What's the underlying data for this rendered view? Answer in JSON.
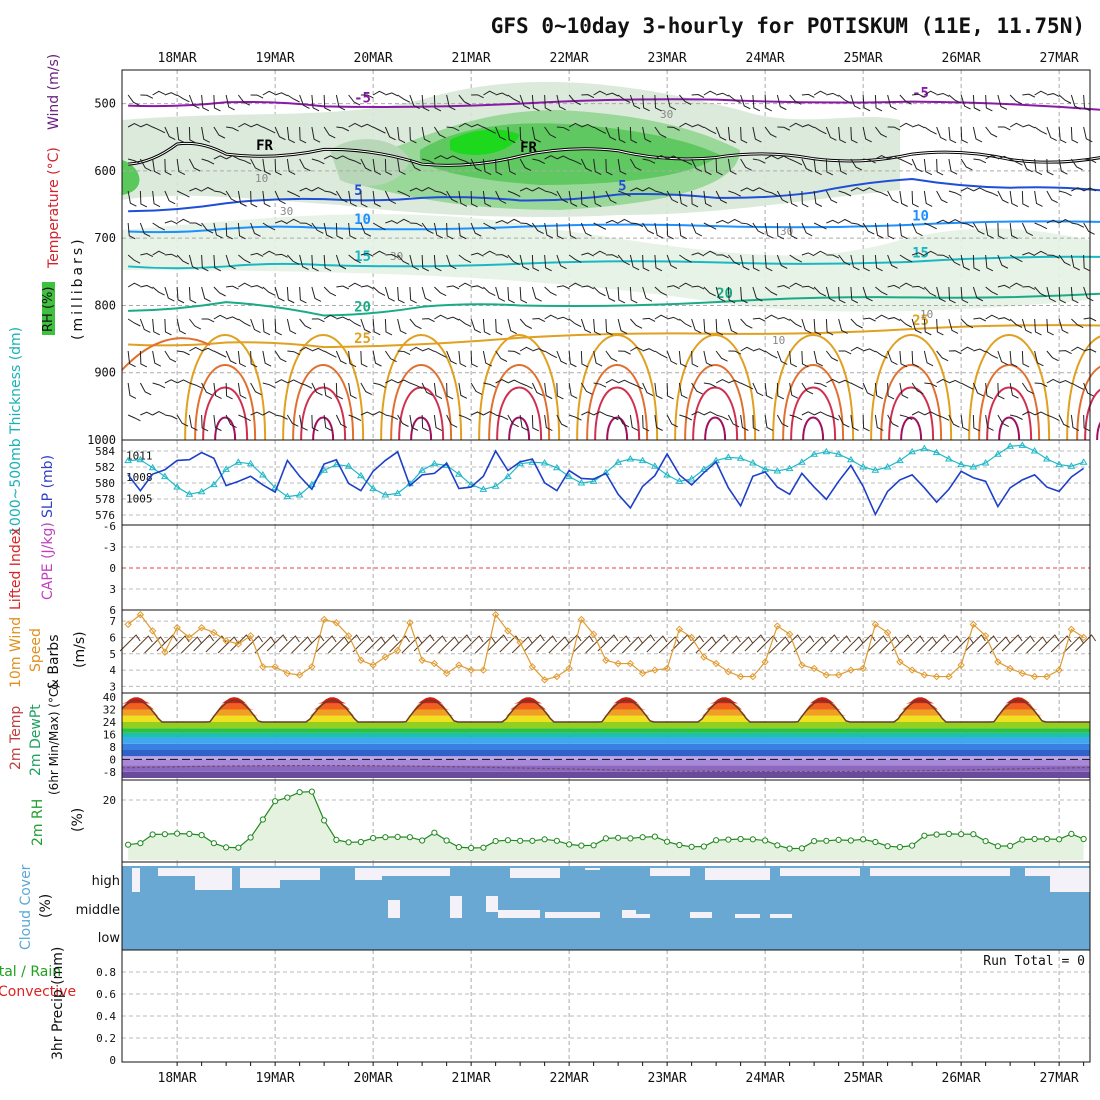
{
  "chart_data": {
    "type": "meteogram",
    "title": "GFS 0~10day 3-hourly for POTISKUM (11E, 11.75N)",
    "dates": [
      "18MAR",
      "19MAR",
      "20MAR",
      "21MAR",
      "22MAR",
      "23MAR",
      "24MAR",
      "25MAR",
      "26MAR",
      "27MAR"
    ],
    "panels": {
      "upper_air": {
        "ylabels": [
          "Wind (m/s)",
          "Temperature (°C)",
          "RH (%)",
          "(millibars)"
        ],
        "yticks": [
          500,
          600,
          700,
          800,
          900,
          1000
        ],
        "ylim": [
          1000,
          450
        ],
        "isotherms": [
          {
            "label": "-5",
            "color": "#8a19a8",
            "p": [
              [
                0,
                503
              ],
              [
                24,
                498
              ],
              [
                48,
                504
              ],
              [
                96,
                500
              ],
              [
                144,
                494
              ],
              [
                192,
                497
              ],
              [
                240,
                510
              ],
              [
                264,
                512
              ]
            ]
          },
          {
            "label": "FR",
            "color": "#000000",
            "p": [
              [
                0,
                590
              ],
              [
                12,
                560
              ],
              [
                24,
                575
              ],
              [
                48,
                568
              ],
              [
                72,
                590
              ],
              [
                96,
                578
              ],
              [
                120,
                570
              ],
              [
                144,
                580
              ],
              [
                168,
                582
              ],
              [
                192,
                575
              ],
              [
                216,
                583
              ],
              [
                240,
                578
              ],
              [
                264,
                582
              ]
            ]
          },
          {
            "label": "5",
            "color": "#1f4ed8",
            "p": [
              [
                0,
                660
              ],
              [
                24,
                648
              ],
              [
                48,
                642
              ],
              [
                72,
                640
              ],
              [
                96,
                644
              ],
              [
                120,
                635
              ],
              [
                144,
                640
              ],
              [
                168,
                632
              ],
              [
                192,
                612
              ],
              [
                216,
                625
              ],
              [
                240,
                630
              ],
              [
                264,
                645
              ]
            ]
          },
          {
            "label": "10",
            "color": "#1e90ff",
            "p": [
              [
                0,
                690
              ],
              [
                24,
                686
              ],
              [
                48,
                685
              ],
              [
                96,
                683
              ],
              [
                144,
                682
              ],
              [
                192,
                680
              ],
              [
                240,
                676
              ],
              [
                264,
                672
              ]
            ]
          },
          {
            "label": "15",
            "color": "#17b8c4",
            "p": [
              [
                0,
                742
              ],
              [
                24,
                742
              ],
              [
                48,
                740
              ],
              [
                96,
                738
              ],
              [
                144,
                736
              ],
              [
                192,
                735
              ],
              [
                240,
                728
              ],
              [
                264,
                724
              ]
            ]
          },
          {
            "label": "20",
            "color": "#1aab86",
            "p": [
              [
                0,
                808
              ],
              [
                24,
                795
              ],
              [
                48,
                815
              ],
              [
                72,
                802
              ],
              [
                96,
                800
              ],
              [
                144,
                795
              ],
              [
                192,
                788
              ],
              [
                240,
                782
              ],
              [
                264,
                785
              ]
            ]
          },
          {
            "label": "25",
            "color": "#e0a020",
            "p": [
              [
                0,
                858
              ],
              [
                24,
                855
              ],
              [
                48,
                862
              ],
              [
                96,
                848
              ],
              [
                144,
                842
              ],
              [
                192,
                835
              ],
              [
                240,
                830
              ],
              [
                264,
                818
              ]
            ]
          }
        ],
        "rh_labels": [
          "10",
          "30",
          "30",
          "30",
          "30",
          "10",
          "10"
        ]
      },
      "thickness_slp": {
        "ylabel_left": "1000~500mb Thickness (dm)",
        "ylabel_right": "SLP (mb)",
        "yticks_left": [
          576,
          578,
          580,
          582,
          584
        ],
        "yticks_right": [
          1005,
          1008,
          1011
        ],
        "thickness": [
          582.8,
          582.9,
          581.9,
          580.8,
          579.5,
          578.6,
          578.9,
          579.8,
          581.7,
          582.6,
          582.4,
          581.0,
          579.4,
          578.3,
          578.5,
          579.8,
          581.6,
          582.3,
          582.1,
          580.9,
          579.3,
          578.5,
          578.7,
          579.9,
          581.6,
          582.4,
          582.2,
          581.1,
          579.8,
          579.2,
          579.6,
          580.8,
          582.4,
          582.6,
          582.5,
          581.9,
          580.8,
          580.0,
          580.2,
          581.3,
          582.6,
          583.0,
          582.8,
          582.1,
          581.0,
          580.2,
          580.5,
          581.7,
          582.8,
          583.2,
          583.1,
          582.5,
          581.7,
          581.5,
          581.8,
          582.6,
          583.6,
          583.9,
          583.6,
          582.9,
          582.0,
          581.6,
          582.0,
          582.8,
          583.9,
          584.3,
          583.8,
          583.0,
          582.3,
          582.0,
          582.5,
          583.6,
          584.6,
          584.7,
          584.0,
          583.0,
          582.3,
          582.1,
          582.6,
          583.6,
          584.4,
          584.6,
          584.0,
          583.2,
          582.5,
          582.2,
          582.6,
          583.4,
          584.2,
          585.0,
          585.0,
          584.6,
          584.1,
          583.5,
          582.8
        ],
        "slp": [
          1008.3,
          1006.1,
          1008.4,
          1009.0,
          1010.3,
          1010.4,
          1011.4,
          1010.6,
          1006.8,
          1007.4,
          1008.1,
          1006.9,
          1005.9,
          1010.3,
          1008.1,
          1006.3,
          1009.8,
          1010.4,
          1007.1,
          1006.1,
          1008.8,
          1010.3,
          1011.5,
          1006.8,
          1008.3,
          1008.5,
          1009.9,
          1006.4,
          1006.6,
          1008.1,
          1011.6,
          1008.9,
          1010.1,
          1010.5,
          1007.2,
          1006.1,
          1008.9,
          1007.8,
          1007.7,
          1008.5,
          1005.6,
          1003.7,
          1006.7,
          1008.2,
          1011.2,
          1008.3,
          1006.9,
          1008.6,
          1010.1,
          1006.5,
          1004.0,
          1008.1,
          1008.7,
          1006.6,
          1005.6,
          1008.5,
          1006.6,
          1004.9,
          1007.4,
          1009.6,
          1006.7,
          1002.8,
          1006.0,
          1007.6,
          1008.3,
          1006.5,
          1004.5,
          1006.3,
          1008.8,
          1007.9,
          1007.4,
          1003.9,
          1006.5,
          1007.6,
          1008.3,
          1006.6,
          1006.0,
          1008.0,
          1009.2,
          1007.6,
          1005.2,
          1008.1,
          1008.9,
          1006.4,
          1003.8,
          1005.4,
          1007.9,
          1008.4,
          1006.3,
          1004.3,
          1007.3,
          1008.2,
          1006.0,
          1004.8,
          1007.1
        ]
      },
      "li_cape": {
        "ylabel_left": "Lifted Index",
        "ylabel_right": "CAPE (J/kg)",
        "yticks": [
          -6,
          -3,
          0,
          3,
          6
        ]
      },
      "wind10m": {
        "ylabel": "10m Wind Speed & Barbs (m/s)",
        "yticks": [
          3,
          4,
          5,
          6,
          7
        ],
        "values": [
          6.8,
          7.4,
          6.4,
          5.1,
          6.6,
          6.0,
          6.6,
          6.3,
          5.8,
          5.6,
          6.1,
          4.2,
          4.2,
          3.8,
          3.7,
          4.2,
          7.1,
          6.9,
          6.1,
          4.6,
          4.3,
          4.8,
          5.2,
          6.9,
          4.6,
          4.4,
          3.8,
          4.3,
          4.0,
          4.0,
          7.4,
          6.4,
          5.7,
          4.2,
          3.4,
          3.6,
          4.1,
          7.1,
          6.2,
          4.6,
          4.4,
          4.4,
          3.8,
          4.0,
          4.1,
          6.5,
          6.0,
          4.8,
          4.4,
          3.9,
          3.6,
          3.6,
          4.5,
          6.7,
          6.2,
          4.3,
          4.1,
          3.7,
          3.7,
          4.0,
          4.1,
          6.8,
          6.3,
          4.5,
          4.0,
          3.7,
          3.6,
          3.6,
          4.3,
          6.8,
          6.1,
          4.5,
          4.1,
          3.8,
          3.6,
          3.6,
          4.0,
          6.5,
          6.0,
          4.4,
          4.1,
          3.8,
          3.6,
          3.6,
          4.4,
          6.8,
          4.6,
          3.2,
          3.4,
          3.7,
          3.8,
          3.8,
          3.5,
          3.6
        ]
      },
      "temp2m": {
        "ylabels": [
          "2m Temp",
          "2m DewPt",
          "(6hr Min/Max) (°C)"
        ],
        "yticks": [
          -8,
          0,
          8,
          16,
          24,
          32,
          40
        ],
        "ylim": [
          -12,
          42
        ]
      },
      "rh2m": {
        "ylabels": [
          "2m RH",
          "(%)"
        ],
        "yticks": [
          20
        ],
        "values": [
          5.1,
          5.6,
          8.5,
          8.6,
          8.8,
          8.7,
          8.3,
          5.6,
          4.2,
          4.1,
          7.5,
          13.5,
          19.6,
          20.8,
          22.6,
          22.8,
          13.2,
          6.7,
          5.9,
          6.0,
          7.3,
          7.6,
          7.7,
          7.6,
          6.5,
          9.1,
          6.5,
          4.3,
          4.0,
          4.1,
          6.3,
          6.6,
          6.4,
          6.4,
          6.9,
          6.4,
          5.2,
          4.8,
          4.9,
          7.2,
          7.4,
          7.2,
          7.6,
          7.8,
          6.1,
          5.0,
          4.4,
          4.5,
          6.6,
          6.8,
          7.0,
          6.9,
          6.5,
          4.9,
          3.8,
          3.9,
          6.3,
          6.4,
          6.7,
          6.5,
          6.9,
          6.0,
          4.6,
          4.3,
          4.8,
          8.1,
          8.5,
          8.7,
          8.6,
          8.6,
          6.3,
          4.6,
          4.7,
          6.8,
          7.0,
          7.0,
          6.9,
          8.7,
          7.0,
          4.8,
          3.4,
          3.6,
          6.1,
          6.7,
          6.4,
          6.7,
          7.0,
          6.5,
          4.7,
          4.4,
          4.8,
          6.3,
          6.2,
          6.6,
          6.5
        ]
      },
      "cloud": {
        "ylabels": [
          "Cloud Cover",
          "(%)"
        ],
        "levels": [
          "high",
          "middle",
          "low"
        ]
      },
      "precip": {
        "ylabels": [
          "Total / Rain",
          "Convective",
          "3hr Precip (mm)"
        ],
        "yticks": [
          0,
          0.2,
          0.4,
          0.6,
          0.8
        ],
        "run_total": "Run Total = 0"
      }
    }
  }
}
